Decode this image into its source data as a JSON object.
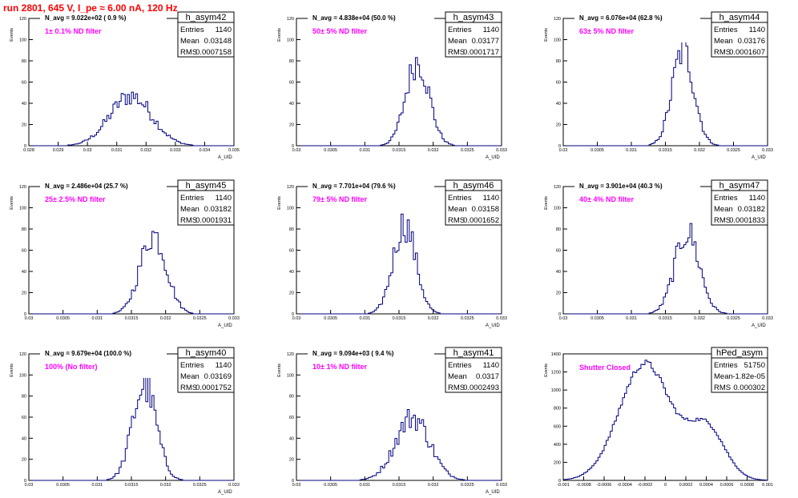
{
  "page": {
    "run_title": "run 2801,   645 V, I_pe ≈ 6.00 nA, 120 Hz"
  },
  "colors": {
    "hist": "#00007f",
    "note": "#ff00ff",
    "title": "#ff0000",
    "axis": "#000000"
  },
  "chart_data": [
    {
      "type": "bar",
      "name": "h_asym42",
      "n_avg": "N_avg = 9.022e+02 ( 0.9 %)",
      "note": "1± 0.1% ND filter",
      "stats": [
        [
          "Entries",
          "1140"
        ],
        [
          "Mean",
          "0.03148"
        ],
        [
          "RMS",
          "0.0007158"
        ]
      ],
      "xlabel": "A_UID",
      "ylabel": "Events",
      "xlim": [
        0.028,
        0.035
      ],
      "ylim": [
        0,
        120
      ],
      "xticks": [
        [
          "0.028",
          0.028
        ],
        [
          "0.029",
          0.029
        ],
        [
          "0.03",
          0.03
        ],
        [
          "0.031",
          0.031
        ],
        [
          "0.032",
          0.032
        ],
        [
          "0.033",
          0.033
        ],
        [
          "0.034",
          0.034
        ],
        [
          "0.035",
          0.035
        ]
      ],
      "yticks": [
        0,
        20,
        40,
        60,
        80,
        100,
        120
      ],
      "hist": {
        "center": 0.03148,
        "sigma": 0.00072,
        "peak": 47,
        "bins": 100
      }
    },
    {
      "type": "bar",
      "name": "h_asym43",
      "n_avg": "N_avg = 4.838e+04 (50.0 %)",
      "note": "50± 5% ND filter",
      "stats": [
        [
          "Entries",
          "1140"
        ],
        [
          "Mean",
          "0.03177"
        ],
        [
          "RMS",
          "0.0001717"
        ]
      ],
      "xlabel": "A_UID",
      "ylabel": "Events",
      "xlim": [
        0.03,
        0.033
      ],
      "ylim": [
        0,
        120
      ],
      "xticks": [
        [
          "0.03",
          0.03
        ],
        [
          "0.0305",
          0.0305
        ],
        [
          "0.031",
          0.031
        ],
        [
          "0.0315",
          0.0315
        ],
        [
          "0.032",
          0.032
        ],
        [
          "0.0325",
          0.0325
        ],
        [
          "0.033",
          0.033
        ]
      ],
      "yticks": [
        0,
        20,
        40,
        60,
        80,
        100,
        120
      ],
      "hist": {
        "center": 0.03177,
        "sigma": 0.00017,
        "peak": 80,
        "bins": 100
      }
    },
    {
      "type": "bar",
      "name": "h_asym44",
      "n_avg": "N_avg = 6.076e+04 (62.8 %)",
      "note": "63± 5% ND filter",
      "stats": [
        [
          "Entries",
          "1140"
        ],
        [
          "Mean",
          "0.03176"
        ],
        [
          "RMS",
          "0.0001607"
        ]
      ],
      "xlabel": "A_UID",
      "ylabel": "Events",
      "xlim": [
        0.03,
        0.033
      ],
      "ylim": [
        0,
        120
      ],
      "xticks": [
        [
          "0.03",
          0.03
        ],
        [
          "0.0305",
          0.0305
        ],
        [
          "0.031",
          0.031
        ],
        [
          "0.0315",
          0.0315
        ],
        [
          "0.032",
          0.032
        ],
        [
          "0.0325",
          0.0325
        ],
        [
          "0.033",
          0.033
        ]
      ],
      "yticks": [
        0,
        20,
        40,
        60,
        80,
        100,
        120
      ],
      "hist": {
        "center": 0.03176,
        "sigma": 0.00016,
        "peak": 90,
        "bins": 100
      }
    },
    {
      "type": "bar",
      "name": "h_asym45",
      "n_avg": "N_avg = 2.486e+04 (25.7 %)",
      "note": "25± 2.5% ND filter",
      "stats": [
        [
          "Entries",
          "1140"
        ],
        [
          "Mean",
          "0.03182"
        ],
        [
          "RMS",
          "0.0001931"
        ]
      ],
      "xlabel": "A_UID",
      "ylabel": "Events",
      "xlim": [
        0.03,
        0.033
      ],
      "ylim": [
        0,
        120
      ],
      "xticks": [
        [
          "0.03",
          0.03
        ],
        [
          "0.0305",
          0.0305
        ],
        [
          "0.031",
          0.031
        ],
        [
          "0.0315",
          0.0315
        ],
        [
          "0.032",
          0.032
        ],
        [
          "0.0325",
          0.0325
        ],
        [
          "0.033",
          0.033
        ]
      ],
      "yticks": [
        0,
        20,
        40,
        60,
        80,
        100,
        120
      ],
      "hist": {
        "center": 0.03182,
        "sigma": 0.00019,
        "peak": 75,
        "bins": 100
      }
    },
    {
      "type": "bar",
      "name": "h_asym46",
      "n_avg": "N_avg = 7.701e+04 (79.6 %)",
      "note": "79± 5% ND filter",
      "stats": [
        [
          "Entries",
          "1140"
        ],
        [
          "Mean",
          "0.03158"
        ],
        [
          "RMS",
          "0.0001652"
        ]
      ],
      "xlabel": "A_UID",
      "ylabel": "Events",
      "xlim": [
        0.03,
        0.033
      ],
      "ylim": [
        0,
        120
      ],
      "xticks": [
        [
          "0.03",
          0.03
        ],
        [
          "0.0305",
          0.0305
        ],
        [
          "0.031",
          0.031
        ],
        [
          "0.0315",
          0.0315
        ],
        [
          "0.032",
          0.032
        ],
        [
          "0.0325",
          0.0325
        ],
        [
          "0.033",
          0.033
        ]
      ],
      "yticks": [
        0,
        20,
        40,
        60,
        80,
        100,
        120
      ],
      "hist": {
        "center": 0.03158,
        "sigma": 0.000165,
        "peak": 85,
        "bins": 100
      }
    },
    {
      "type": "bar",
      "name": "h_asym47",
      "n_avg": "N_avg = 3.901e+04 (40.3 %)",
      "note": "40± 4% ND filter",
      "stats": [
        [
          "Entries",
          "1140"
        ],
        [
          "Mean",
          "0.03182"
        ],
        [
          "RMS",
          "0.0001833"
        ]
      ],
      "xlabel": "A_UID",
      "ylabel": "Events",
      "xlim": [
        0.03,
        0.033
      ],
      "ylim": [
        0,
        120
      ],
      "xticks": [
        [
          "0.03",
          0.03
        ],
        [
          "0.0305",
          0.0305
        ],
        [
          "0.031",
          0.031
        ],
        [
          "0.0315",
          0.0315
        ],
        [
          "0.032",
          0.032
        ],
        [
          "0.0325",
          0.0325
        ],
        [
          "0.033",
          0.033
        ]
      ],
      "yticks": [
        0,
        20,
        40,
        60,
        80,
        100,
        120
      ],
      "hist": {
        "center": 0.03182,
        "sigma": 0.00018,
        "peak": 77,
        "bins": 100
      }
    },
    {
      "type": "bar",
      "name": "h_asym40",
      "n_avg": "N_avg = 9.679e+04 (100.0 %)",
      "note": "100% (No filter)",
      "stats": [
        [
          "Entries",
          "1140"
        ],
        [
          "Mean",
          "0.03169"
        ],
        [
          "RMS",
          "0.0001752"
        ]
      ],
      "xlabel": "A_UID",
      "ylabel": "Events",
      "xlim": [
        0.03,
        0.033
      ],
      "ylim": [
        0,
        120
      ],
      "xticks": [
        [
          "0.03",
          0.03
        ],
        [
          "0.0305",
          0.0305
        ],
        [
          "0.031",
          0.031
        ],
        [
          "0.0315",
          0.0315
        ],
        [
          "0.032",
          0.032
        ],
        [
          "0.0325",
          0.0325
        ],
        [
          "0.033",
          0.033
        ]
      ],
      "yticks": [
        0,
        20,
        40,
        60,
        80,
        100,
        120
      ],
      "hist": {
        "center": 0.03169,
        "sigma": 0.000175,
        "peak": 90,
        "bins": 100
      }
    },
    {
      "type": "bar",
      "name": "h_asym41",
      "n_avg": "N_avg = 9.094e+03 ( 9.4 %)",
      "note": "10± 1% ND filter",
      "stats": [
        [
          "Entries",
          "1140"
        ],
        [
          "Mean",
          "0.0317"
        ],
        [
          "RMS",
          "0.0002493"
        ]
      ],
      "xlabel": "A_UID",
      "ylabel": "Events",
      "xlim": [
        0.03,
        0.033
      ],
      "ylim": [
        0,
        120
      ],
      "xticks": [
        [
          "0.03",
          0.03
        ],
        [
          "0.0305",
          0.0305
        ],
        [
          "0.031",
          0.031
        ],
        [
          "0.0315",
          0.0315
        ],
        [
          "0.032",
          0.032
        ],
        [
          "0.0325",
          0.0325
        ],
        [
          "0.033",
          0.033
        ]
      ],
      "yticks": [
        0,
        20,
        40,
        60,
        80,
        100,
        120
      ],
      "hist": {
        "center": 0.0317,
        "sigma": 0.00025,
        "peak": 60,
        "bins": 100
      }
    },
    {
      "type": "bar",
      "name": "hPed_asym",
      "n_avg": "",
      "note": "Shutter Closed",
      "stats": [
        [
          "Entries",
          "51750"
        ],
        [
          "Mean",
          "-1.82e-05"
        ],
        [
          "RMS",
          "0.000302"
        ]
      ],
      "xlabel": "",
      "ylabel": "Events",
      "xlim": [
        -0.001,
        0.001
      ],
      "ylim": [
        0,
        1400
      ],
      "xticks": [
        [
          "-0.001",
          -0.001
        ],
        [
          "-0.0008",
          -0.0008
        ],
        [
          "-0.0006",
          -0.0006
        ],
        [
          "-0.0004",
          -0.0004
        ],
        [
          "-0.0002",
          -0.0002
        ],
        [
          "0",
          0
        ],
        [
          "0.0002",
          0.0002
        ],
        [
          "0.0004",
          0.0004
        ],
        [
          "0.0006",
          0.0006
        ],
        [
          "0.0008",
          0.0008
        ],
        [
          "0.001",
          0.001
        ]
      ],
      "yticks": [
        0,
        200,
        400,
        600,
        800,
        1000,
        1200,
        1400
      ],
      "hist": {
        "center": -0.0002,
        "sigma": 0.00025,
        "peak": 1360,
        "bins": 100,
        "shape": "ped"
      }
    }
  ]
}
